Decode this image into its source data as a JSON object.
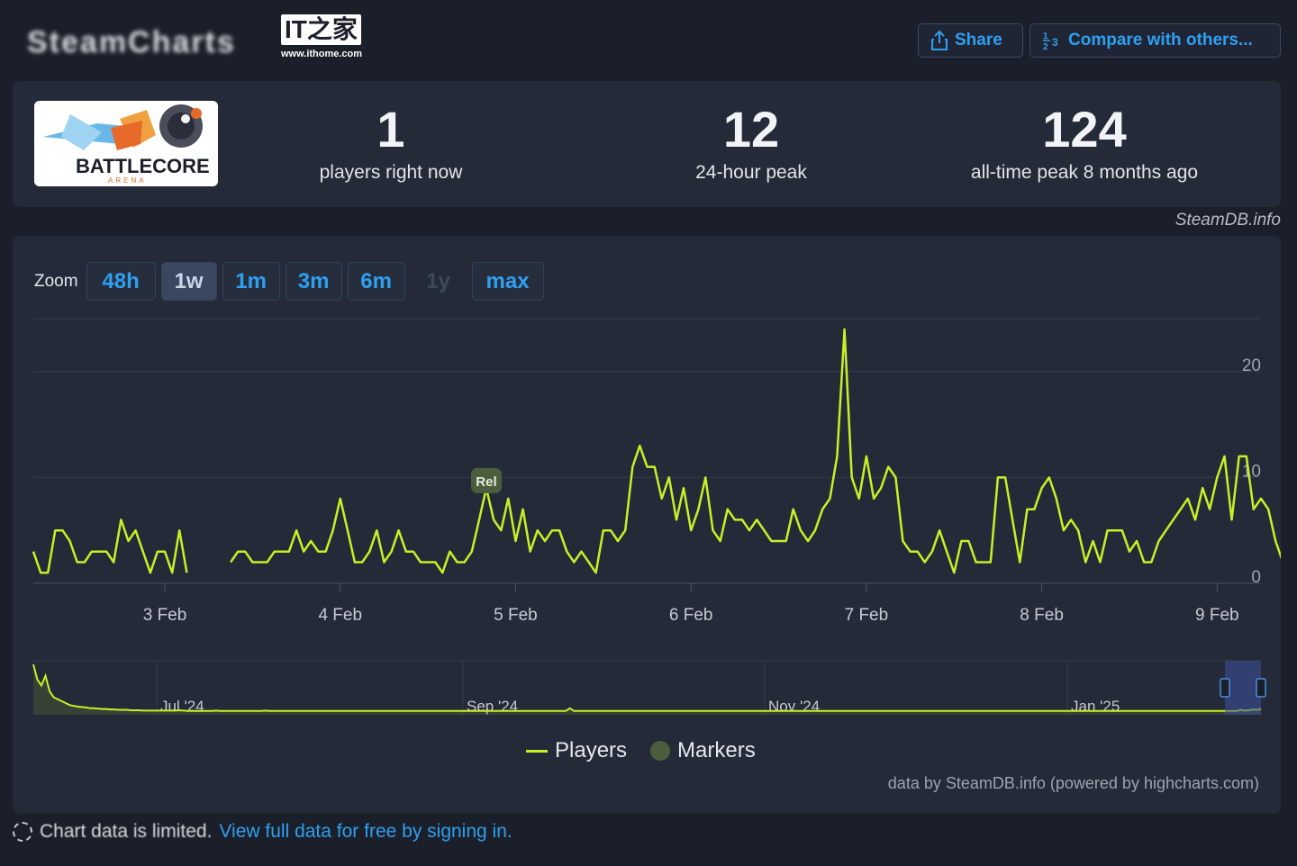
{
  "header": {
    "site_title": "SteamCharts",
    "watermark_url": "www.ithome.com",
    "watermark_logo": "IT之家",
    "share_label": "Share",
    "compare_label": "Compare with others..."
  },
  "game": {
    "logo_text": "BATTLECORE",
    "logo_subtext": "ARENA"
  },
  "stats": [
    {
      "value": "1",
      "label": "players right now"
    },
    {
      "value": "12",
      "label": "24-hour peak"
    },
    {
      "value": "124",
      "label": "all-time peak 8 months ago"
    }
  ],
  "source_mark": "SteamDB.info",
  "zoom": {
    "label": "Zoom",
    "options": [
      "48h",
      "1w",
      "1m",
      "3m",
      "6m",
      "1y",
      "max"
    ],
    "active": "1w",
    "disabled": [
      "1y"
    ]
  },
  "chart_data": {
    "type": "line",
    "title": "",
    "xlabel": "",
    "ylabel": "",
    "ylim": [
      0,
      25
    ],
    "yticks": [
      0,
      10,
      20
    ],
    "xtick_labels": [
      "3 Feb",
      "4 Feb",
      "5 Feb",
      "6 Feb",
      "7 Feb",
      "8 Feb",
      "9 Feb"
    ],
    "x_range_days": [
      2.25,
      9.25
    ],
    "grid": true,
    "series": [
      {
        "name": "Players",
        "color": "#c8f026",
        "points": [
          [
            2.25,
            3
          ],
          [
            2.292,
            1
          ],
          [
            2.333,
            1
          ],
          [
            2.375,
            5
          ],
          [
            2.417,
            5
          ],
          [
            2.458,
            4
          ],
          [
            2.5,
            2
          ],
          [
            2.542,
            2
          ],
          [
            2.583,
            3
          ],
          [
            2.625,
            3
          ],
          [
            2.667,
            3
          ],
          [
            2.708,
            2
          ],
          [
            2.75,
            6
          ],
          [
            2.792,
            4
          ],
          [
            2.833,
            5
          ],
          [
            2.875,
            3
          ],
          [
            2.917,
            1
          ],
          [
            2.958,
            3
          ],
          [
            3.0,
            3
          ],
          [
            3.042,
            1
          ],
          [
            3.083,
            5
          ],
          [
            3.125,
            1
          ],
          null,
          [
            3.375,
            2
          ],
          [
            3.417,
            3
          ],
          [
            3.458,
            3
          ],
          [
            3.5,
            2
          ],
          [
            3.542,
            2
          ],
          [
            3.583,
            2
          ],
          [
            3.625,
            3
          ],
          [
            3.667,
            3
          ],
          [
            3.708,
            3
          ],
          [
            3.75,
            5
          ],
          [
            3.792,
            3
          ],
          [
            3.833,
            4
          ],
          [
            3.875,
            3
          ],
          [
            3.917,
            3
          ],
          [
            3.958,
            5
          ],
          [
            4.0,
            8
          ],
          [
            4.042,
            5
          ],
          [
            4.083,
            2
          ],
          [
            4.125,
            2
          ],
          [
            4.167,
            3
          ],
          [
            4.208,
            5
          ],
          [
            4.25,
            2
          ],
          [
            4.292,
            3
          ],
          [
            4.333,
            5
          ],
          [
            4.375,
            3
          ],
          [
            4.417,
            3
          ],
          [
            4.458,
            2
          ],
          [
            4.5,
            2
          ],
          [
            4.542,
            2
          ],
          [
            4.583,
            1
          ],
          [
            4.625,
            3
          ],
          [
            4.667,
            2
          ],
          [
            4.708,
            2
          ],
          [
            4.75,
            3
          ],
          [
            4.792,
            6
          ],
          [
            4.833,
            9
          ],
          [
            4.875,
            6
          ],
          [
            4.917,
            5
          ],
          [
            4.958,
            8
          ],
          [
            5.0,
            4
          ],
          [
            5.042,
            7
          ],
          [
            5.083,
            3
          ],
          [
            5.125,
            5
          ],
          [
            5.167,
            4
          ],
          [
            5.208,
            5
          ],
          [
            5.25,
            5
          ],
          [
            5.292,
            3
          ],
          [
            5.333,
            2
          ],
          [
            5.375,
            3
          ],
          [
            5.417,
            2
          ],
          [
            5.458,
            1
          ],
          [
            5.5,
            5
          ],
          [
            5.542,
            5
          ],
          [
            5.583,
            4
          ],
          [
            5.625,
            5
          ],
          [
            5.667,
            11
          ],
          [
            5.708,
            13
          ],
          [
            5.75,
            11
          ],
          [
            5.792,
            11
          ],
          [
            5.833,
            8
          ],
          [
            5.875,
            10
          ],
          [
            5.917,
            6
          ],
          [
            5.958,
            9
          ],
          [
            6.0,
            5
          ],
          [
            6.042,
            7
          ],
          [
            6.083,
            10
          ],
          [
            6.125,
            5
          ],
          [
            6.167,
            4
          ],
          [
            6.208,
            7
          ],
          [
            6.25,
            6
          ],
          [
            6.292,
            6
          ],
          [
            6.333,
            5
          ],
          [
            6.375,
            6
          ],
          [
            6.417,
            5
          ],
          [
            6.458,
            4
          ],
          [
            6.5,
            4
          ],
          [
            6.542,
            4
          ],
          [
            6.583,
            7
          ],
          [
            6.625,
            5
          ],
          [
            6.667,
            4
          ],
          [
            6.708,
            5
          ],
          [
            6.75,
            7
          ],
          [
            6.792,
            8
          ],
          [
            6.833,
            12
          ],
          [
            6.875,
            24
          ],
          [
            6.917,
            10
          ],
          [
            6.958,
            8
          ],
          [
            7.0,
            12
          ],
          [
            7.042,
            8
          ],
          [
            7.083,
            9
          ],
          [
            7.125,
            11
          ],
          [
            7.167,
            10
          ],
          [
            7.208,
            4
          ],
          [
            7.25,
            3
          ],
          [
            7.292,
            3
          ],
          [
            7.333,
            2
          ],
          [
            7.375,
            3
          ],
          [
            7.417,
            5
          ],
          [
            7.458,
            3
          ],
          [
            7.5,
            1
          ],
          [
            7.542,
            4
          ],
          [
            7.583,
            4
          ],
          [
            7.625,
            2
          ],
          [
            7.667,
            2
          ],
          [
            7.708,
            2
          ],
          [
            7.75,
            10
          ],
          [
            7.792,
            10
          ],
          [
            7.833,
            6
          ],
          [
            7.875,
            2
          ],
          [
            7.917,
            7
          ],
          [
            7.958,
            7
          ],
          [
            8.0,
            9
          ],
          [
            8.042,
            10
          ],
          [
            8.083,
            8
          ],
          [
            8.125,
            5
          ],
          [
            8.167,
            6
          ],
          [
            8.208,
            5
          ],
          [
            8.25,
            2
          ],
          [
            8.292,
            4
          ],
          [
            8.333,
            2
          ],
          [
            8.375,
            5
          ],
          [
            8.417,
            5
          ],
          [
            8.458,
            5
          ],
          [
            8.5,
            3
          ],
          [
            8.542,
            4
          ],
          [
            8.583,
            2
          ],
          [
            8.625,
            2
          ],
          [
            8.667,
            4
          ],
          [
            8.708,
            5
          ],
          [
            8.75,
            6
          ],
          [
            8.792,
            7
          ],
          [
            8.833,
            8
          ],
          [
            8.875,
            6
          ],
          [
            8.917,
            9
          ],
          [
            8.958,
            7
          ],
          [
            9.0,
            10
          ],
          [
            9.042,
            12
          ],
          [
            9.083,
            6
          ],
          [
            9.125,
            12
          ],
          [
            9.167,
            12
          ],
          [
            9.208,
            7
          ],
          [
            9.25,
            8
          ],
          [
            9.292,
            7
          ],
          [
            9.333,
            4
          ],
          [
            9.375,
            2
          ],
          [
            9.417,
            4
          ],
          [
            9.458,
            3
          ],
          [
            9.5,
            4
          ],
          [
            9.542,
            2
          ]
        ]
      }
    ],
    "markers": [
      {
        "label": "Rel",
        "x": 4.833
      }
    ],
    "navigator": {
      "labels": [
        "Jul '24",
        "Sep '24",
        "Nov '24",
        "Jan '25"
      ],
      "values": [
        124,
        85,
        70,
        95,
        55,
        40,
        35,
        30,
        25,
        20,
        18,
        16,
        15,
        14,
        12,
        12,
        11,
        10,
        10,
        9,
        9,
        8,
        8,
        8,
        7,
        7,
        7,
        6,
        6,
        6,
        6,
        6,
        6,
        6,
        6,
        6,
        7,
        6,
        5,
        5,
        5,
        5,
        5,
        5,
        5,
        6,
        5,
        5,
        5,
        5,
        5,
        5,
        5,
        5,
        5,
        5,
        5,
        6,
        5,
        5,
        5,
        5,
        5,
        5,
        5,
        5,
        5,
        5,
        5,
        5,
        5,
        5,
        5,
        5,
        5,
        5,
        5,
        5,
        5,
        5,
        5,
        5,
        5,
        5,
        5,
        5,
        5,
        5,
        5,
        5,
        5,
        5,
        5,
        5,
        5,
        5,
        5,
        5,
        5,
        5,
        5,
        5,
        5,
        5,
        5,
        5,
        5,
        5,
        5,
        5,
        5,
        5,
        5,
        5,
        5,
        5,
        5,
        5,
        5,
        5,
        5,
        5,
        5,
        5,
        5,
        5,
        5,
        5,
        5,
        5,
        5,
        5,
        12,
        5,
        5,
        5,
        5,
        5,
        5,
        5,
        5,
        5,
        5,
        5,
        5,
        5,
        5,
        5,
        5,
        5,
        5,
        5,
        5,
        5,
        5,
        5,
        5,
        5,
        5,
        5,
        5,
        5,
        5,
        5,
        5,
        5,
        5,
        5,
        5,
        5,
        5,
        5,
        5,
        5,
        5,
        5,
        5,
        5,
        5,
        5,
        5,
        5,
        5,
        5,
        5,
        5,
        5,
        5,
        5,
        5,
        5,
        5,
        5,
        5,
        5,
        5,
        5,
        5,
        5,
        5,
        5,
        5,
        5,
        5,
        5,
        5,
        5,
        5,
        5,
        5,
        5,
        5,
        5,
        5,
        5,
        5,
        5,
        5,
        5,
        5,
        5,
        5,
        5,
        5,
        5,
        5,
        5,
        5,
        5,
        5,
        5,
        5,
        5,
        5,
        5,
        5,
        5,
        5,
        5,
        5,
        5,
        5,
        5,
        5,
        5,
        5,
        5,
        5,
        5,
        5,
        5,
        5,
        5,
        5,
        5,
        5,
        5,
        5,
        5,
        5,
        5,
        5,
        5,
        5,
        5,
        5,
        5,
        5,
        5,
        5,
        5,
        5,
        5,
        5,
        5,
        5,
        5,
        5,
        5,
        5,
        5,
        5,
        5,
        5,
        5,
        5,
        5,
        5,
        5,
        5,
        5,
        5,
        5,
        5,
        5,
        5,
        5,
        8,
        6,
        7,
        9,
        8,
        10
      ]
    },
    "legend": [
      {
        "name": "Players",
        "color": "#c8f026"
      },
      {
        "name": "Markers",
        "color": "#4a5e3e"
      }
    ],
    "legend_position": "bottom-center"
  },
  "credits": "data by SteamDB.info (powered by highcharts.com)",
  "footer": {
    "notice": "Chart data is limited.",
    "link": "View full data for free by signing in."
  }
}
